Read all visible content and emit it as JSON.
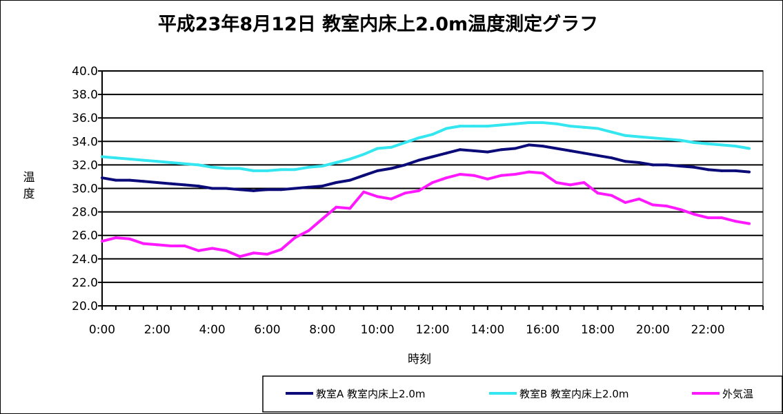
{
  "chart_data": {
    "type": "line",
    "title": "平成23年8月12日 教室内床上2.0m温度測定グラフ",
    "xlabel": "時刻",
    "ylabel": "温度",
    "ylim": [
      20,
      40
    ],
    "ytick_labels": [
      "20.0",
      "22.0",
      "24.0",
      "26.0",
      "28.0",
      "30.0",
      "32.0",
      "34.0",
      "36.0",
      "38.0",
      "40.0"
    ],
    "xtick_labels": [
      "0:00",
      "2:00",
      "4:00",
      "6:00",
      "8:00",
      "10:00",
      "12:00",
      "14:00",
      "16:00",
      "18:00",
      "20:00",
      "22:00"
    ],
    "x_step_hours": 0.5,
    "grid": true,
    "legend_position": "bottom-right",
    "series": [
      {
        "name": "教室A 教室内床上2.0m",
        "color": "#0a0a78",
        "values": [
          30.9,
          30.7,
          30.7,
          30.6,
          30.5,
          30.4,
          30.3,
          30.2,
          30.0,
          30.0,
          29.9,
          29.8,
          29.9,
          29.9,
          30.0,
          30.1,
          30.2,
          30.5,
          30.7,
          31.1,
          31.5,
          31.7,
          32.0,
          32.4,
          32.7,
          33.0,
          33.3,
          33.2,
          33.1,
          33.3,
          33.4,
          33.7,
          33.6,
          33.4,
          33.2,
          33.0,
          32.8,
          32.6,
          32.3,
          32.2,
          32.0,
          32.0,
          31.9,
          31.8,
          31.6,
          31.5,
          31.5,
          31.4
        ]
      },
      {
        "name": "教室B 教室内床上2.0m",
        "color": "#33e6f0",
        "values": [
          32.7,
          32.6,
          32.5,
          32.4,
          32.3,
          32.2,
          32.1,
          32.0,
          31.8,
          31.7,
          31.7,
          31.5,
          31.5,
          31.6,
          31.6,
          31.8,
          31.9,
          32.2,
          32.5,
          32.9,
          33.4,
          33.5,
          33.9,
          34.3,
          34.6,
          35.1,
          35.3,
          35.3,
          35.3,
          35.4,
          35.5,
          35.6,
          35.6,
          35.5,
          35.3,
          35.2,
          35.1,
          34.8,
          34.5,
          34.4,
          34.3,
          34.2,
          34.1,
          33.9,
          33.8,
          33.7,
          33.6,
          33.4
        ]
      },
      {
        "name": "外気温",
        "color": "#ff19ff",
        "values": [
          25.5,
          25.8,
          25.7,
          25.3,
          25.2,
          25.1,
          25.1,
          24.7,
          24.9,
          24.7,
          24.2,
          24.5,
          24.4,
          24.8,
          25.8,
          26.4,
          27.4,
          28.4,
          28.3,
          29.7,
          29.3,
          29.1,
          29.6,
          29.8,
          30.5,
          30.9,
          31.2,
          31.1,
          30.8,
          31.1,
          31.2,
          31.4,
          31.3,
          30.5,
          30.3,
          30.5,
          29.6,
          29.4,
          28.8,
          29.1,
          28.6,
          28.5,
          28.2,
          27.8,
          27.5,
          27.5,
          27.2,
          27.0
        ]
      }
    ]
  }
}
